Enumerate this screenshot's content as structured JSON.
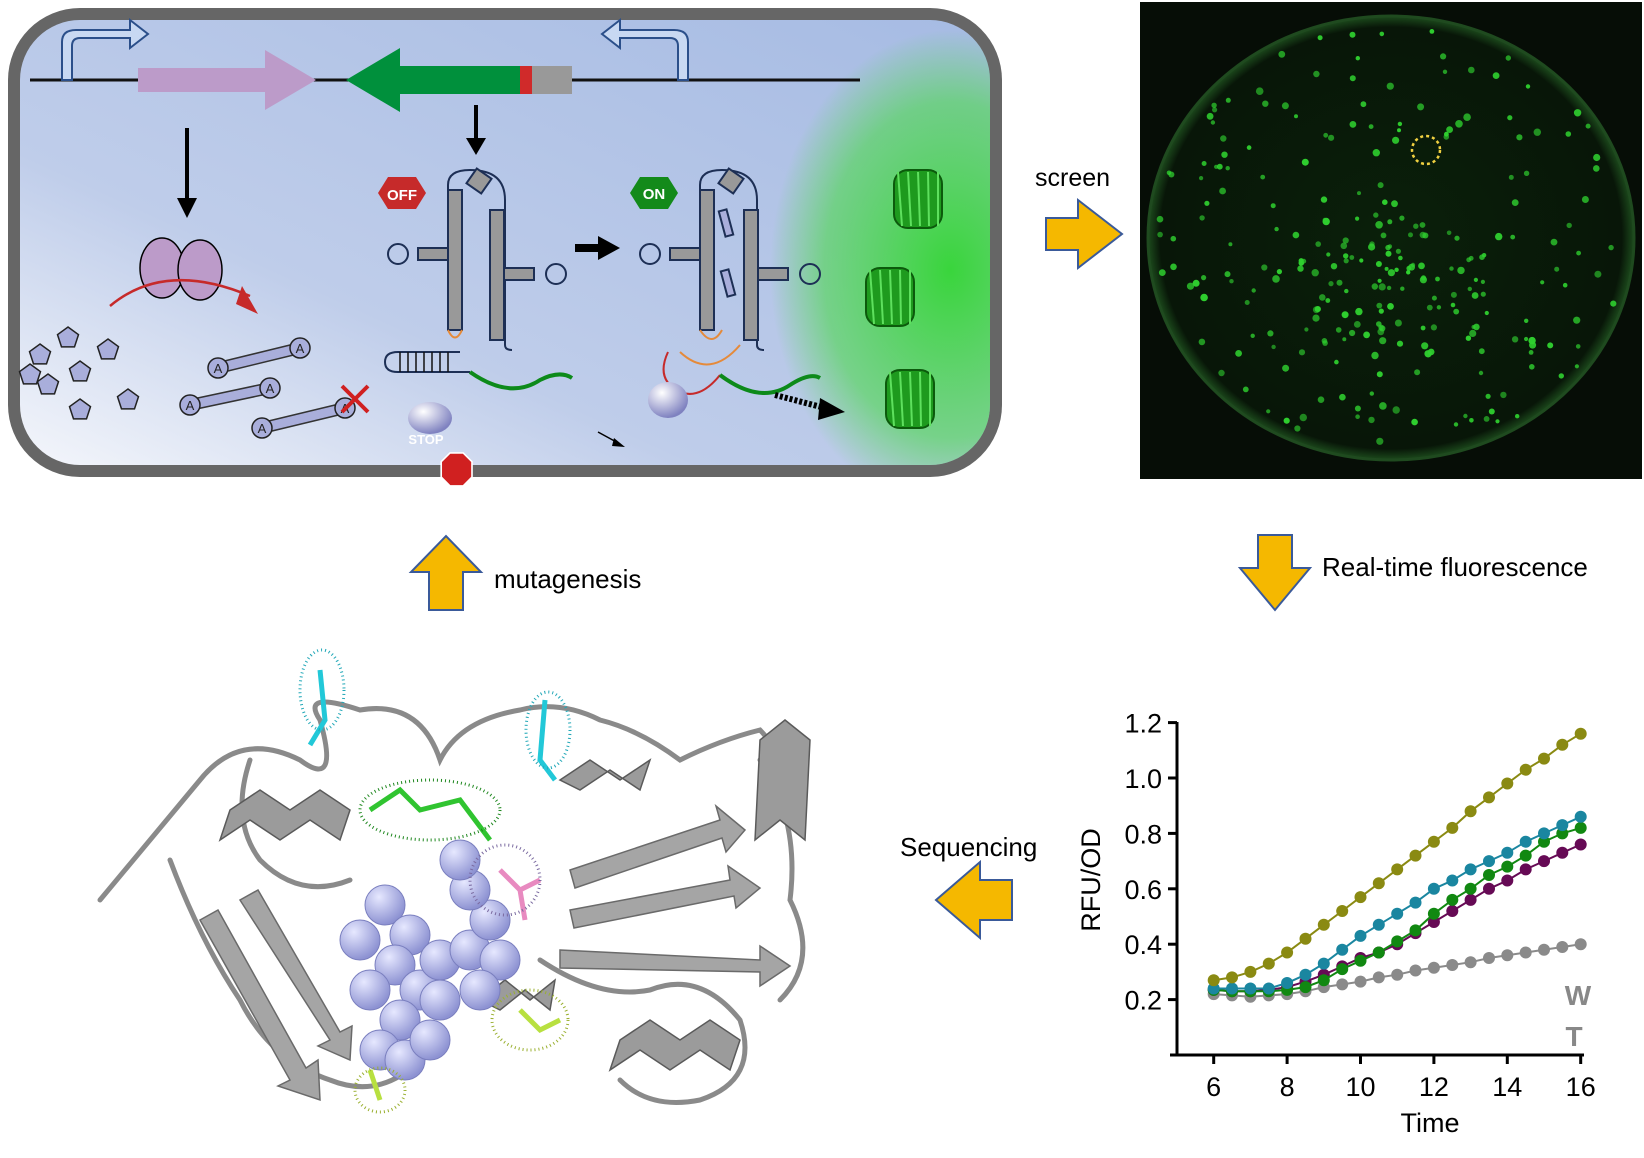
{
  "labels": {
    "screen": "screen",
    "real_time": "Real-time fluorescence",
    "mutagenesis": "mutagenesis",
    "sequencing": "Sequencing",
    "off": "OFF",
    "on": "ON",
    "stop": "STOP",
    "ligand_letter": "A"
  },
  "colors": {
    "cell_border": "#666666",
    "cell_fill": "#a8bce2",
    "flow_arrow": "#f5b800",
    "flow_arrow_outline": "#3a5a9a",
    "off_badge": "#c62a2a",
    "on_badge": "#138a1a",
    "gfp": "#2fbf2f",
    "enzyme": "#b99ac9",
    "ligand": "#a9aedb"
  },
  "chart_data": {
    "type": "scatter",
    "xlabel": "Time",
    "ylabel": "RFU/OD",
    "xlim": [
      5,
      16
    ],
    "ylim": [
      0,
      1.2
    ],
    "xticks": [
      6,
      8,
      10,
      12,
      14,
      16
    ],
    "yticks": [
      "0.2",
      "0.4",
      "0.6",
      "0.8",
      "1.0",
      "1.2"
    ],
    "annotation": [
      "W",
      "T"
    ],
    "grid": false,
    "x": [
      6,
      6.5,
      7,
      7.5,
      8,
      8.5,
      9,
      9.5,
      10,
      10.5,
      11,
      11.5,
      12,
      12.5,
      13,
      13.5,
      14,
      14.5,
      15,
      15.5,
      16
    ],
    "series": [
      {
        "color": "#8a8a12",
        "values": [
          0.27,
          0.28,
          0.3,
          0.33,
          0.37,
          0.42,
          0.47,
          0.52,
          0.57,
          0.62,
          0.67,
          0.72,
          0.77,
          0.82,
          0.88,
          0.93,
          0.98,
          1.03,
          1.07,
          1.12,
          1.16
        ]
      },
      {
        "color": "#1a86a0",
        "values": [
          0.24,
          0.24,
          0.24,
          0.24,
          0.26,
          0.29,
          0.33,
          0.38,
          0.43,
          0.47,
          0.51,
          0.55,
          0.6,
          0.63,
          0.67,
          0.7,
          0.73,
          0.77,
          0.8,
          0.83,
          0.86
        ]
      },
      {
        "color": "#118811",
        "values": [
          0.235,
          0.23,
          0.23,
          0.23,
          0.235,
          0.245,
          0.27,
          0.31,
          0.34,
          0.37,
          0.41,
          0.45,
          0.51,
          0.56,
          0.6,
          0.65,
          0.68,
          0.72,
          0.77,
          0.8,
          0.82
        ]
      },
      {
        "color": "#660a55",
        "values": [
          0.235,
          0.23,
          0.23,
          0.235,
          0.245,
          0.265,
          0.29,
          0.32,
          0.35,
          0.37,
          0.4,
          0.44,
          0.48,
          0.52,
          0.56,
          0.6,
          0.63,
          0.67,
          0.7,
          0.73,
          0.76
        ]
      },
      {
        "color": "#8a8a8a",
        "values": [
          0.22,
          0.215,
          0.21,
          0.215,
          0.22,
          0.23,
          0.245,
          0.255,
          0.265,
          0.28,
          0.29,
          0.305,
          0.315,
          0.325,
          0.335,
          0.35,
          0.36,
          0.37,
          0.38,
          0.39,
          0.4
        ]
      }
    ]
  }
}
